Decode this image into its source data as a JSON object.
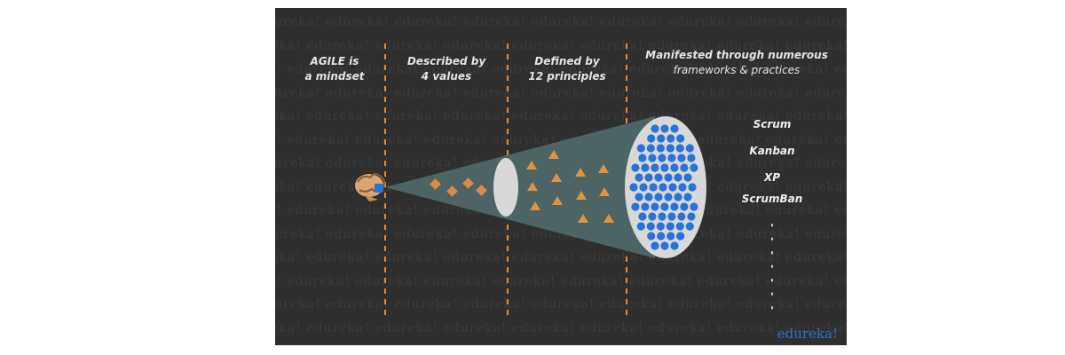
{
  "watermark": "edureka!",
  "stages": [
    {
      "line1": "AGILE is",
      "line2": "a mindset"
    },
    {
      "line1": "Described by",
      "line2": "4 values"
    },
    {
      "line1": "Defined by",
      "line2": "12 principles"
    },
    {
      "line1": "Manifested through numerous",
      "line2": "frameworks & practices"
    }
  ],
  "frameworks": [
    "Scrum",
    "Kanban",
    "XP",
    "ScrumBan"
  ],
  "brand": "edureka!",
  "colors": {
    "background": "#2f2f2f",
    "divider": "#e08a3a",
    "cone": "#4d6464",
    "ellipse": "#d8d8d8",
    "value_diamond": "#d98a4a",
    "principle_triangle": "#e0923f",
    "practice_dot": "#2b72d6",
    "brand": "#2a74c9"
  },
  "icons": {
    "mindset": "brain-head-icon",
    "value": "diamond-icon",
    "principle": "triangle-icon",
    "practice": "dot-icon"
  },
  "counts": {
    "values": 4,
    "principles": 12
  }
}
